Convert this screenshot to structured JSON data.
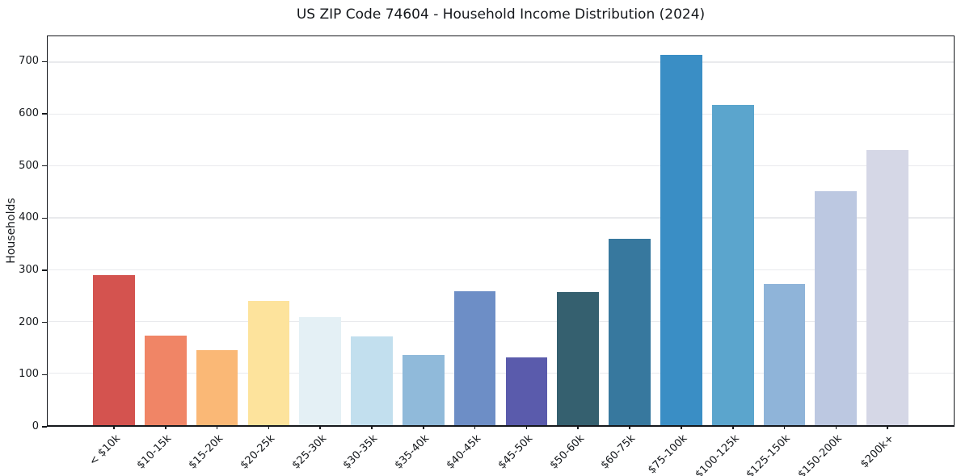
{
  "chart_data": {
    "type": "bar",
    "title": "US ZIP Code 74604 - Household Income Distribution (2024)",
    "xlabel": "",
    "ylabel": "Households",
    "categories": [
      "< $10k",
      "$10-15k",
      "$15-20k",
      "$20-25k",
      "$25-30k",
      "$30-35k",
      "$35-40k",
      "$40-45k",
      "$45-50k",
      "$50-60k",
      "$60-75k",
      "$75-100k",
      "$100-125k",
      "$125-150k",
      "$150-200k",
      "$200k+"
    ],
    "values": [
      290,
      172,
      144,
      239,
      209,
      171,
      136,
      258,
      130,
      256,
      360,
      715,
      618,
      273,
      452,
      531
    ],
    "bar_colors": [
      "#d4534f",
      "#f08566",
      "#fab876",
      "#fde39c",
      "#e4f0f5",
      "#c2dfee",
      "#90bada",
      "#6d8ec6",
      "#5a5bac",
      "#35606f",
      "#37789e",
      "#3a8ec5",
      "#5ba5cd",
      "#8fb4d9",
      "#bcc8e1",
      "#d5d7e6"
    ],
    "ylim": [
      0,
      750
    ],
    "yticks": [
      0,
      100,
      200,
      300,
      400,
      500,
      600,
      700
    ],
    "grid": "horizontal",
    "gridline_color": "#e9eaed",
    "axis_color": "#15181c",
    "background_color": "#ffffff",
    "xtick_rotation": 45,
    "legend": "none"
  }
}
